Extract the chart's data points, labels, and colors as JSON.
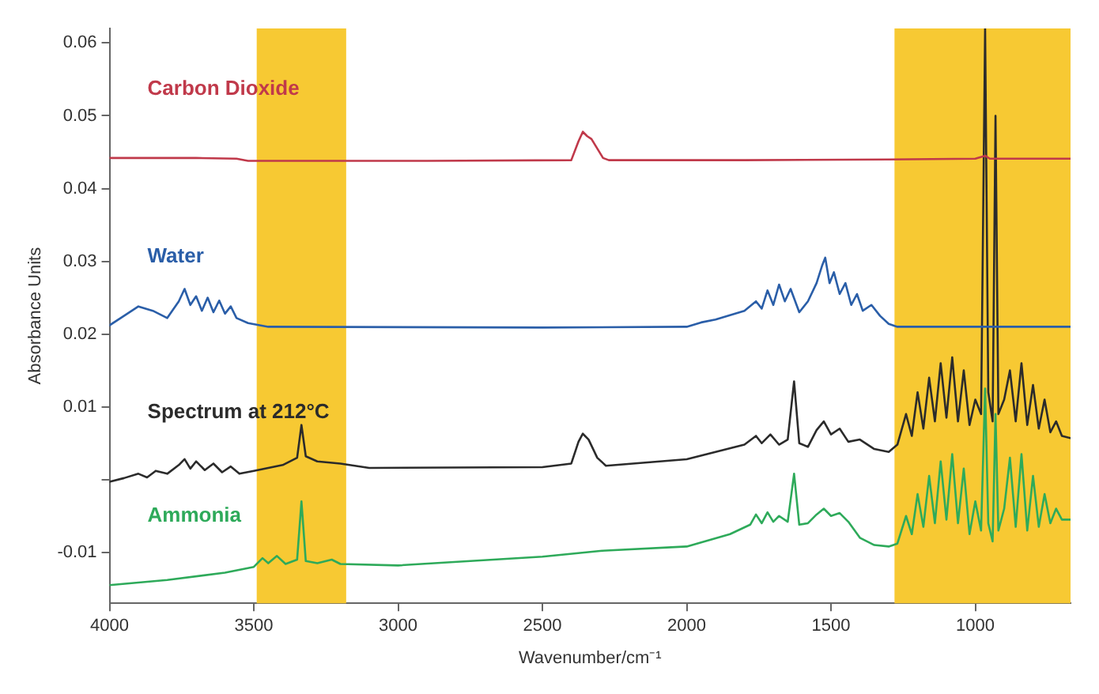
{
  "chart_data": {
    "type": "line",
    "xlabel": "Wavenumber/cm⁻¹",
    "ylabel": "Absorbance Units",
    "xlim": [
      4000,
      670
    ],
    "xticks": [
      4000,
      3500,
      3000,
      2500,
      2000,
      1500,
      1000
    ],
    "ylim": [
      -0.017,
      0.062
    ],
    "yticks": [
      -0.01,
      {
        "value": 0,
        "label": null
      },
      0.01,
      0.02,
      0.03,
      0.04,
      0.05,
      0.06
    ],
    "grid": false,
    "legend": false,
    "marker": "none",
    "line_style": "solid",
    "bands": [
      {
        "axis": "x",
        "from": 3490,
        "to": 3180,
        "color": "#f7c933"
      },
      {
        "axis": "x",
        "from": 1280,
        "to": 670,
        "color": "#f7c933"
      }
    ],
    "series": [
      {
        "name": "Carbon Dioxide",
        "color": "#c0394a",
        "x": [
          4000,
          3700,
          3560,
          3520,
          2900,
          2400,
          2375,
          2360,
          2345,
          2330,
          2310,
          2290,
          2270,
          1800,
          1300,
          1000,
          965,
          950,
          670
        ],
        "values": [
          0.0442,
          0.0442,
          0.0441,
          0.0438,
          0.0438,
          0.0439,
          0.0465,
          0.0478,
          0.0472,
          0.0468,
          0.0455,
          0.0442,
          0.0439,
          0.0439,
          0.044,
          0.0441,
          0.0445,
          0.0441,
          0.0441
        ]
      },
      {
        "name": "Water",
        "color": "#2a5ea8",
        "x": [
          4000,
          3950,
          3900,
          3850,
          3800,
          3760,
          3740,
          3720,
          3700,
          3680,
          3660,
          3640,
          3620,
          3600,
          3580,
          3560,
          3520,
          3450,
          2500,
          2000,
          1950,
          1900,
          1850,
          1800,
          1760,
          1740,
          1720,
          1700,
          1680,
          1660,
          1640,
          1610,
          1580,
          1550,
          1530,
          1520,
          1505,
          1490,
          1470,
          1450,
          1430,
          1410,
          1390,
          1360,
          1330,
          1300,
          1270,
          670
        ],
        "values": [
          0.0212,
          0.0225,
          0.0238,
          0.0232,
          0.0222,
          0.0245,
          0.0262,
          0.024,
          0.0252,
          0.0232,
          0.025,
          0.023,
          0.0246,
          0.0228,
          0.0238,
          0.0222,
          0.0215,
          0.021,
          0.0209,
          0.021,
          0.0216,
          0.022,
          0.0226,
          0.0232,
          0.0245,
          0.0235,
          0.026,
          0.024,
          0.0268,
          0.0245,
          0.0262,
          0.023,
          0.0245,
          0.027,
          0.0295,
          0.0305,
          0.027,
          0.0285,
          0.0255,
          0.027,
          0.024,
          0.0255,
          0.0232,
          0.024,
          0.0225,
          0.0214,
          0.021,
          0.021
        ]
      },
      {
        "name": "Spectrum at 212°C",
        "color": "#2b2b2b",
        "x": [
          4000,
          3950,
          3900,
          3870,
          3840,
          3800,
          3760,
          3740,
          3720,
          3700,
          3670,
          3640,
          3610,
          3580,
          3550,
          3500,
          3400,
          3350,
          3335,
          3320,
          3280,
          3200,
          3100,
          2500,
          2400,
          2375,
          2360,
          2340,
          2310,
          2280,
          2000,
          1900,
          1800,
          1760,
          1740,
          1710,
          1680,
          1650,
          1628,
          1610,
          1580,
          1550,
          1525,
          1500,
          1470,
          1440,
          1400,
          1350,
          1300,
          1270,
          1240,
          1220,
          1200,
          1180,
          1160,
          1140,
          1120,
          1100,
          1080,
          1060,
          1040,
          1020,
          1000,
          980,
          966,
          955,
          940,
          930,
          920,
          900,
          880,
          860,
          840,
          820,
          800,
          780,
          760,
          740,
          720,
          700,
          670
        ],
        "values": [
          -0.0003,
          0.0002,
          0.0008,
          0.0003,
          0.0012,
          0.0008,
          0.002,
          0.0028,
          0.0015,
          0.0025,
          0.0013,
          0.0022,
          0.001,
          0.0018,
          0.0008,
          0.0012,
          0.002,
          0.003,
          0.0075,
          0.0032,
          0.0025,
          0.0022,
          0.0016,
          0.0017,
          0.0022,
          0.0052,
          0.0063,
          0.0055,
          0.003,
          0.0019,
          0.0028,
          0.0038,
          0.0048,
          0.006,
          0.005,
          0.0062,
          0.0048,
          0.0055,
          0.0135,
          0.005,
          0.0045,
          0.0068,
          0.008,
          0.0062,
          0.007,
          0.0052,
          0.0055,
          0.0042,
          0.0038,
          0.0048,
          0.009,
          0.006,
          0.012,
          0.007,
          0.014,
          0.008,
          0.016,
          0.0085,
          0.0168,
          0.008,
          0.015,
          0.0075,
          0.011,
          0.009,
          0.062,
          0.012,
          0.008,
          0.05,
          0.009,
          0.011,
          0.015,
          0.008,
          0.016,
          0.0075,
          0.013,
          0.007,
          0.011,
          0.0065,
          0.008,
          0.006,
          0.0057
        ]
      },
      {
        "name": "Ammonia",
        "color": "#2eaa5a",
        "x": [
          4000,
          3800,
          3600,
          3500,
          3470,
          3450,
          3420,
          3390,
          3350,
          3335,
          3320,
          3280,
          3230,
          3200,
          3000,
          2500,
          2300,
          2000,
          1850,
          1780,
          1760,
          1740,
          1720,
          1700,
          1680,
          1650,
          1628,
          1610,
          1580,
          1550,
          1525,
          1500,
          1470,
          1440,
          1400,
          1350,
          1300,
          1270,
          1240,
          1220,
          1200,
          1180,
          1160,
          1140,
          1120,
          1100,
          1080,
          1060,
          1040,
          1020,
          1000,
          980,
          966,
          955,
          940,
          930,
          920,
          900,
          880,
          860,
          840,
          820,
          800,
          780,
          760,
          740,
          720,
          700,
          670
        ],
        "values": [
          -0.0145,
          -0.0138,
          -0.0128,
          -0.012,
          -0.0108,
          -0.0115,
          -0.0105,
          -0.0116,
          -0.011,
          -0.003,
          -0.0112,
          -0.0115,
          -0.011,
          -0.0116,
          -0.0118,
          -0.0106,
          -0.0098,
          -0.0092,
          -0.0075,
          -0.0062,
          -0.0048,
          -0.006,
          -0.0045,
          -0.0058,
          -0.005,
          -0.0058,
          0.0008,
          -0.0062,
          -0.006,
          -0.0048,
          -0.004,
          -0.005,
          -0.0046,
          -0.0058,
          -0.008,
          -0.009,
          -0.0092,
          -0.0088,
          -0.005,
          -0.0075,
          -0.002,
          -0.0065,
          0.0005,
          -0.006,
          0.0025,
          -0.0055,
          0.0035,
          -0.006,
          0.0015,
          -0.0075,
          -0.003,
          -0.007,
          0.0125,
          -0.006,
          -0.0085,
          0.009,
          -0.007,
          -0.004,
          0.003,
          -0.0065,
          0.0035,
          -0.007,
          0.0005,
          -0.0065,
          -0.002,
          -0.006,
          -0.004,
          -0.0055,
          -0.0055
        ]
      }
    ]
  }
}
